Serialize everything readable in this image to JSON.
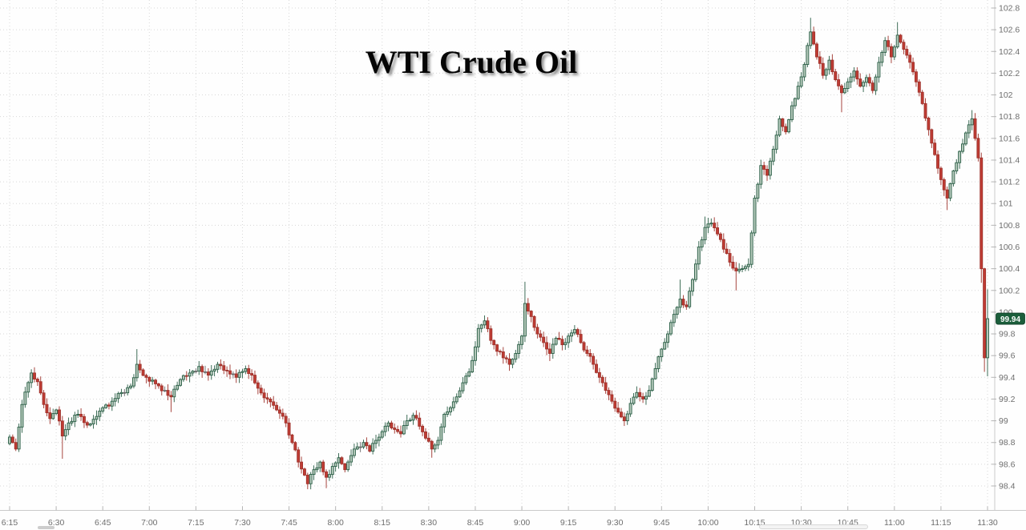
{
  "title": "WTI Crude Oil",
  "price_badge": {
    "label": "99.94",
    "bg": "#1b5e3b",
    "text_color": "#ffffff"
  },
  "chart_data": {
    "type": "candlestick",
    "title": "WTI Crude Oil",
    "interval_minutes": 1,
    "session_start": "6:15",
    "session_end": "11:30",
    "minutes_span": 315,
    "last_price": 99.94,
    "grid": "dotted",
    "legend_position": "none",
    "x_tick_labels": [
      "6:15",
      "6:30",
      "6:45",
      "7:00",
      "7:15",
      "7:30",
      "7:45",
      "8:00",
      "8:15",
      "8:30",
      "8:45",
      "9:00",
      "9:15",
      "9:30",
      "9:45",
      "10:00",
      "10:15",
      "10:30",
      "10:45",
      "11:00",
      "11:15",
      "11:30"
    ],
    "y_tick_labels": [
      "102.8",
      "102.6",
      "102.4",
      "102.2",
      "102",
      "101.8",
      "101.6",
      "101.4",
      "101.2",
      "101",
      "100.8",
      "100.6",
      "100.4",
      "100.2",
      "100",
      "99.8",
      "99.6",
      "99.4",
      "99.2",
      "99",
      "98.8",
      "98.6",
      "98.4"
    ],
    "y_max_label": 102.8,
    "y_min_label": 98.4,
    "y_step": 0.2,
    "ylim": [
      98.2,
      102.87
    ],
    "colors": {
      "up_fill": "#b4c8ba",
      "up_stroke": "#2a5e46",
      "down_fill": "#c03c34",
      "down_stroke": "#9e322b",
      "neutral": "#6a6a6a",
      "grid": "#d8d8d8",
      "axis_line": "#c9c9c9",
      "tick_text": "#6e6e6e",
      "background": "#fefefe"
    },
    "price_path_format": "[minute_from_6:15, close, high_or_null, low_or_null]",
    "price_path_keyframes": [
      [
        0,
        98.85,
        null,
        null
      ],
      [
        2,
        98.74,
        null,
        null
      ],
      [
        4,
        99.15,
        null,
        null
      ],
      [
        7,
        99.44,
        null,
        null
      ],
      [
        9,
        99.36,
        null,
        null
      ],
      [
        11,
        99.15,
        null,
        null
      ],
      [
        13,
        99.02,
        null,
        null
      ],
      [
        15,
        99.1,
        null,
        null
      ],
      [
        17,
        98.86,
        null,
        98.65
      ],
      [
        19,
        98.98,
        null,
        null
      ],
      [
        22,
        99.06,
        null,
        null
      ],
      [
        25,
        98.96,
        null,
        null
      ],
      [
        28,
        99.04,
        null,
        null
      ],
      [
        30,
        99.12,
        null,
        null
      ],
      [
        33,
        99.18,
        null,
        null
      ],
      [
        36,
        99.26,
        null,
        null
      ],
      [
        39,
        99.32,
        null,
        null
      ],
      [
        41,
        99.52,
        99.66,
        null
      ],
      [
        44,
        99.4,
        null,
        null
      ],
      [
        47,
        99.34,
        null,
        null
      ],
      [
        50,
        99.28,
        null,
        null
      ],
      [
        52,
        99.22,
        null,
        99.08
      ],
      [
        55,
        99.38,
        null,
        null
      ],
      [
        58,
        99.44,
        null,
        null
      ],
      [
        61,
        99.5,
        null,
        null
      ],
      [
        64,
        99.42,
        null,
        null
      ],
      [
        67,
        99.52,
        null,
        null
      ],
      [
        70,
        99.46,
        null,
        null
      ],
      [
        73,
        99.4,
        null,
        null
      ],
      [
        76,
        99.48,
        null,
        null
      ],
      [
        78,
        99.42,
        null,
        null
      ],
      [
        80,
        99.3,
        null,
        null
      ],
      [
        83,
        99.2,
        null,
        null
      ],
      [
        86,
        99.1,
        null,
        null
      ],
      [
        89,
        98.98,
        null,
        null
      ],
      [
        91,
        98.8,
        null,
        null
      ],
      [
        93,
        98.62,
        null,
        null
      ],
      [
        95,
        98.5,
        null,
        null
      ],
      [
        96,
        98.42,
        null,
        98.37
      ],
      [
        98,
        98.55,
        null,
        null
      ],
      [
        100,
        98.62,
        null,
        null
      ],
      [
        102,
        98.48,
        null,
        98.38
      ],
      [
        104,
        98.58,
        null,
        null
      ],
      [
        106,
        98.66,
        null,
        null
      ],
      [
        108,
        98.55,
        null,
        null
      ],
      [
        110,
        98.68,
        null,
        null
      ],
      [
        112,
        98.76,
        null,
        null
      ],
      [
        114,
        98.8,
        null,
        null
      ],
      [
        116,
        98.72,
        null,
        null
      ],
      [
        118,
        98.82,
        null,
        null
      ],
      [
        120,
        98.9,
        null,
        null
      ],
      [
        122,
        98.98,
        null,
        null
      ],
      [
        124,
        98.92,
        null,
        null
      ],
      [
        126,
        98.88,
        null,
        null
      ],
      [
        128,
        99.0,
        null,
        null
      ],
      [
        130,
        99.05,
        null,
        null
      ],
      [
        132,
        98.95,
        null,
        null
      ],
      [
        134,
        98.84,
        null,
        null
      ],
      [
        136,
        98.74,
        null,
        98.66
      ],
      [
        138,
        98.82,
        null,
        null
      ],
      [
        140,
        99.06,
        null,
        null
      ],
      [
        142,
        99.12,
        null,
        null
      ],
      [
        144,
        99.22,
        null,
        null
      ],
      [
        146,
        99.35,
        null,
        null
      ],
      [
        148,
        99.45,
        null,
        null
      ],
      [
        150,
        99.68,
        null,
        null
      ],
      [
        151,
        99.85,
        null,
        null
      ],
      [
        153,
        99.92,
        99.97,
        null
      ],
      [
        155,
        99.74,
        null,
        null
      ],
      [
        157,
        99.64,
        null,
        null
      ],
      [
        159,
        99.58,
        null,
        null
      ],
      [
        161,
        99.52,
        null,
        99.46
      ],
      [
        163,
        99.62,
        null,
        null
      ],
      [
        165,
        99.78,
        null,
        null
      ],
      [
        166,
        100.08,
        100.28,
        null
      ],
      [
        168,
        99.96,
        null,
        null
      ],
      [
        170,
        99.8,
        null,
        null
      ],
      [
        172,
        99.72,
        null,
        null
      ],
      [
        174,
        99.62,
        null,
        99.55
      ],
      [
        176,
        99.76,
        null,
        null
      ],
      [
        178,
        99.7,
        null,
        null
      ],
      [
        180,
        99.78,
        null,
        null
      ],
      [
        182,
        99.84,
        null,
        null
      ],
      [
        184,
        99.72,
        null,
        null
      ],
      [
        186,
        99.62,
        null,
        null
      ],
      [
        188,
        99.52,
        null,
        null
      ],
      [
        190,
        99.4,
        null,
        null
      ],
      [
        192,
        99.28,
        null,
        null
      ],
      [
        194,
        99.18,
        null,
        null
      ],
      [
        196,
        99.08,
        null,
        null
      ],
      [
        198,
        99.0,
        null,
        98.96
      ],
      [
        200,
        99.16,
        null,
        null
      ],
      [
        202,
        99.26,
        null,
        null
      ],
      [
        204,
        99.2,
        null,
        null
      ],
      [
        206,
        99.28,
        null,
        null
      ],
      [
        208,
        99.48,
        null,
        null
      ],
      [
        210,
        99.66,
        null,
        null
      ],
      [
        212,
        99.8,
        null,
        null
      ],
      [
        214,
        99.98,
        null,
        null
      ],
      [
        216,
        100.12,
        100.3,
        null
      ],
      [
        218,
        100.05,
        null,
        null
      ],
      [
        220,
        100.3,
        null,
        null
      ],
      [
        222,
        100.6,
        null,
        null
      ],
      [
        224,
        100.78,
        100.88,
        null
      ],
      [
        226,
        100.82,
        null,
        null
      ],
      [
        228,
        100.72,
        null,
        null
      ],
      [
        230,
        100.58,
        null,
        null
      ],
      [
        232,
        100.46,
        null,
        null
      ],
      [
        234,
        100.38,
        null,
        100.2
      ],
      [
        236,
        100.4,
        null,
        null
      ],
      [
        238,
        100.44,
        null,
        null
      ],
      [
        240,
        101.05,
        null,
        null
      ],
      [
        242,
        101.35,
        null,
        null
      ],
      [
        244,
        101.26,
        null,
        null
      ],
      [
        246,
        101.5,
        null,
        null
      ],
      [
        248,
        101.78,
        null,
        null
      ],
      [
        250,
        101.66,
        null,
        null
      ],
      [
        252,
        101.9,
        null,
        null
      ],
      [
        254,
        102.08,
        null,
        null
      ],
      [
        256,
        102.28,
        null,
        null
      ],
      [
        258,
        102.58,
        102.71,
        null
      ],
      [
        260,
        102.35,
        null,
        null
      ],
      [
        262,
        102.18,
        null,
        null
      ],
      [
        264,
        102.32,
        null,
        null
      ],
      [
        266,
        102.14,
        null,
        null
      ],
      [
        268,
        102.02,
        null,
        101.84
      ],
      [
        270,
        102.12,
        null,
        null
      ],
      [
        272,
        102.22,
        null,
        null
      ],
      [
        274,
        102.08,
        null,
        null
      ],
      [
        276,
        102.16,
        null,
        null
      ],
      [
        278,
        102.04,
        null,
        null
      ],
      [
        280,
        102.3,
        null,
        null
      ],
      [
        282,
        102.5,
        null,
        null
      ],
      [
        284,
        102.35,
        null,
        null
      ],
      [
        286,
        102.55,
        102.67,
        null
      ],
      [
        288,
        102.42,
        null,
        null
      ],
      [
        290,
        102.3,
        null,
        null
      ],
      [
        292,
        102.12,
        null,
        null
      ],
      [
        294,
        101.92,
        null,
        null
      ],
      [
        296,
        101.68,
        null,
        null
      ],
      [
        298,
        101.45,
        null,
        null
      ],
      [
        300,
        101.22,
        null,
        null
      ],
      [
        302,
        101.05,
        null,
        100.94
      ],
      [
        304,
        101.3,
        null,
        null
      ],
      [
        306,
        101.48,
        null,
        null
      ],
      [
        308,
        101.65,
        null,
        null
      ],
      [
        310,
        101.78,
        101.86,
        null
      ],
      [
        311,
        101.6,
        null,
        null
      ],
      [
        312,
        101.42,
        null,
        null
      ],
      [
        313,
        100.4,
        null,
        100.27
      ],
      [
        314,
        99.58,
        null,
        99.45
      ],
      [
        315,
        99.94,
        100.21,
        99.41
      ]
    ]
  }
}
